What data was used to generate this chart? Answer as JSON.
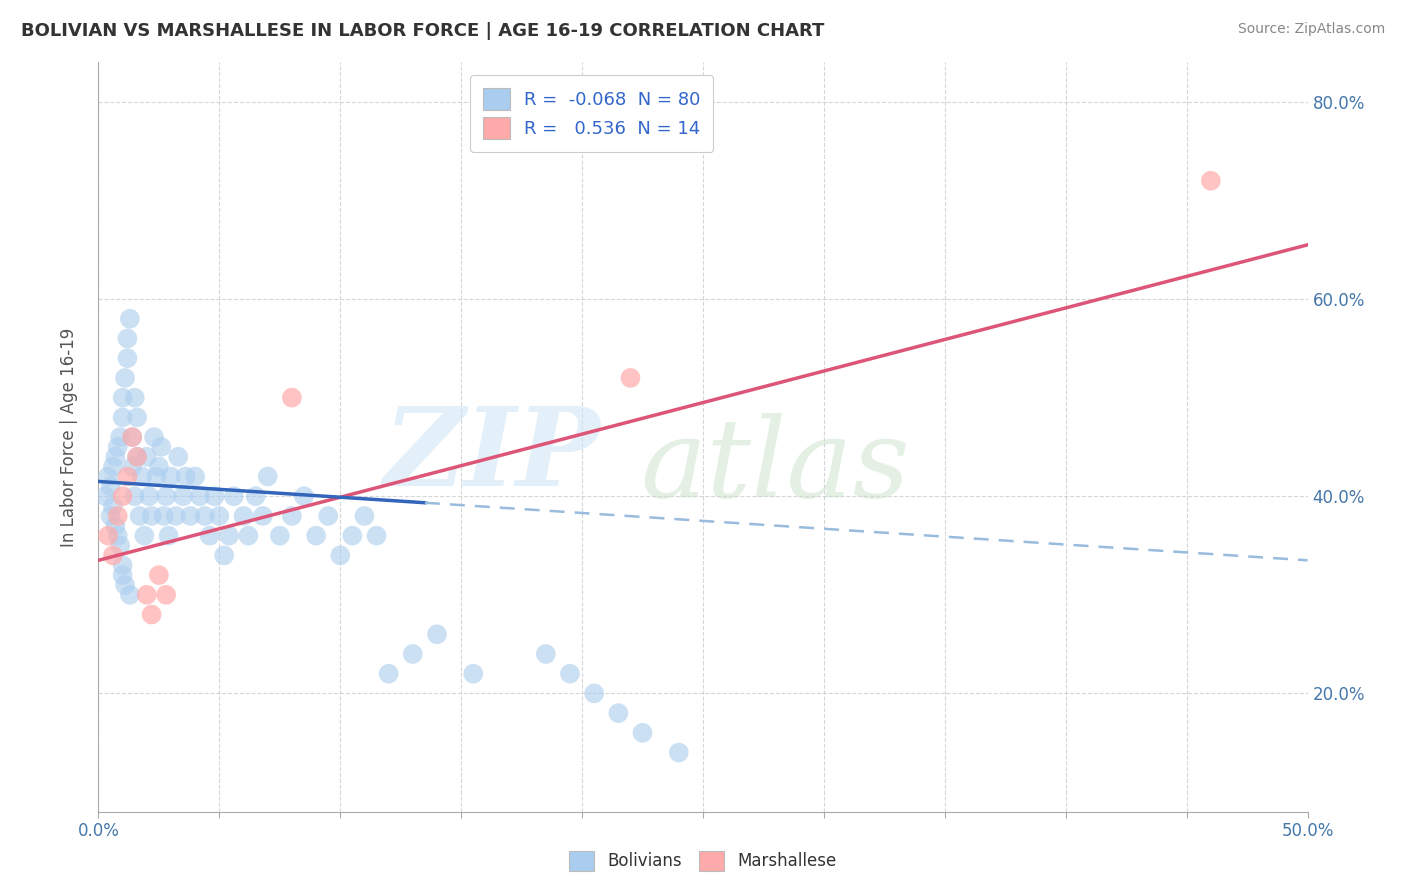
{
  "title": "BOLIVIAN VS MARSHALLESE IN LABOR FORCE | AGE 16-19 CORRELATION CHART",
  "source_text": "Source: ZipAtlas.com",
  "ylabel": "In Labor Force | Age 16-19",
  "xlim": [
    0.0,
    0.5
  ],
  "ylim": [
    0.08,
    0.84
  ],
  "bolivian_color": "#aaccee",
  "marshallese_color": "#ffaaaa",
  "trend_bolivian_solid_color": "#3366bb",
  "trend_bolivian_dash_color": "#99bbdd",
  "trend_marshallese_color": "#dd5577",
  "R_bolivian": -0.068,
  "N_bolivian": 80,
  "R_marshallese": 0.536,
  "N_marshallese": 14,
  "background_color": "#ffffff",
  "grid_color": "#cccccc",
  "bolivian_x": [
    0.003,
    0.004,
    0.005,
    0.005,
    0.006,
    0.006,
    0.007,
    0.007,
    0.008,
    0.008,
    0.009,
    0.009,
    0.01,
    0.01,
    0.01,
    0.01,
    0.011,
    0.011,
    0.012,
    0.012,
    0.013,
    0.013,
    0.014,
    0.014,
    0.015,
    0.015,
    0.016,
    0.016,
    0.017,
    0.018,
    0.019,
    0.02,
    0.021,
    0.022,
    0.023,
    0.024,
    0.025,
    0.026,
    0.027,
    0.028,
    0.029,
    0.03,
    0.032,
    0.033,
    0.035,
    0.036,
    0.038,
    0.04,
    0.042,
    0.044,
    0.046,
    0.048,
    0.05,
    0.052,
    0.054,
    0.056,
    0.06,
    0.062,
    0.065,
    0.068,
    0.07,
    0.075,
    0.08,
    0.085,
    0.09,
    0.095,
    0.1,
    0.105,
    0.11,
    0.115,
    0.12,
    0.13,
    0.14,
    0.155,
    0.185,
    0.195,
    0.205,
    0.215,
    0.225,
    0.24
  ],
  "bolivian_y": [
    0.4,
    0.42,
    0.38,
    0.41,
    0.43,
    0.39,
    0.44,
    0.37,
    0.45,
    0.36,
    0.46,
    0.35,
    0.48,
    0.33,
    0.5,
    0.32,
    0.52,
    0.31,
    0.54,
    0.56,
    0.58,
    0.3,
    0.43,
    0.46,
    0.4,
    0.5,
    0.48,
    0.44,
    0.38,
    0.42,
    0.36,
    0.44,
    0.4,
    0.38,
    0.46,
    0.42,
    0.43,
    0.45,
    0.38,
    0.4,
    0.36,
    0.42,
    0.38,
    0.44,
    0.4,
    0.42,
    0.38,
    0.42,
    0.4,
    0.38,
    0.36,
    0.4,
    0.38,
    0.34,
    0.36,
    0.4,
    0.38,
    0.36,
    0.4,
    0.38,
    0.42,
    0.36,
    0.38,
    0.4,
    0.36,
    0.38,
    0.34,
    0.36,
    0.38,
    0.36,
    0.22,
    0.24,
    0.26,
    0.22,
    0.24,
    0.22,
    0.2,
    0.18,
    0.16,
    0.14
  ],
  "marshallese_x": [
    0.004,
    0.006,
    0.008,
    0.01,
    0.012,
    0.014,
    0.016,
    0.02,
    0.022,
    0.025,
    0.028,
    0.08,
    0.22,
    0.46
  ],
  "marshallese_y": [
    0.36,
    0.34,
    0.38,
    0.4,
    0.42,
    0.46,
    0.44,
    0.3,
    0.28,
    0.32,
    0.3,
    0.5,
    0.52,
    0.72
  ],
  "trend_b_x0": 0.0,
  "trend_b_y0": 0.415,
  "trend_b_x1": 0.5,
  "trend_b_y1": 0.335,
  "trend_b_solid_end": 0.135,
  "trend_m_x0": 0.0,
  "trend_m_y0": 0.335,
  "trend_m_x1": 0.5,
  "trend_m_y1": 0.655
}
